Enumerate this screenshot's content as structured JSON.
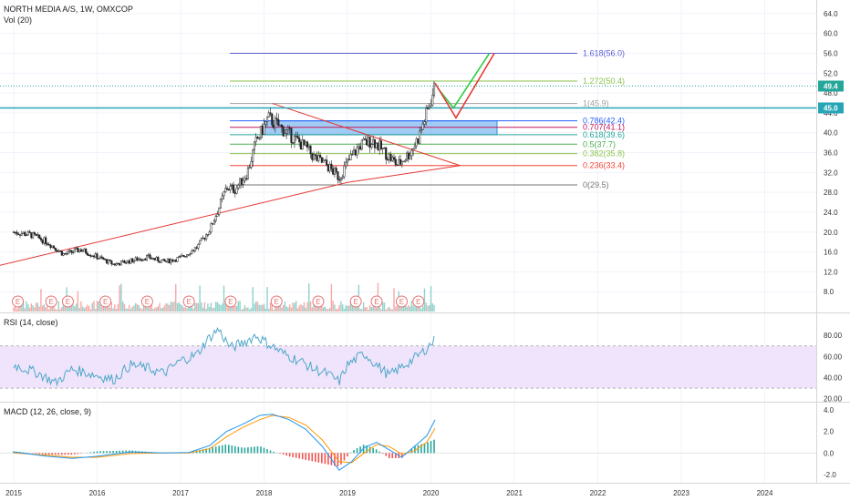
{
  "header": {
    "symbol_line": "NORTH MEDIA A/S, 1W, OMXCOP",
    "volume_label": "Vol (20)"
  },
  "panes": {
    "rsi_label": "RSI (14, close)",
    "macd_label": "MACD (12, 26, close, 9)"
  },
  "colors": {
    "up": "#26a69a",
    "down": "#ef5350",
    "fib_zone": "#2f8ee6",
    "rsi_line": "#4fa7c8",
    "rsi_band": "#efe4fb",
    "macd_line": "#2196f3",
    "signal_line": "#ff9800",
    "trend_line": "#e53935",
    "current_price": "#26a69a",
    "level_45": "#26a5b7",
    "projection_green": "#2ecc40",
    "projection_red": "#e53935"
  },
  "chart_data": {
    "type": "candlestick",
    "x_axis": {
      "ticks": [
        "2015",
        "2016",
        "2017",
        "2018",
        "2019",
        "2020",
        "2021",
        "2022",
        "2023",
        "2024"
      ]
    },
    "price_axis": {
      "ticks": [
        "8.0",
        "12.0",
        "16.0",
        "20.0",
        "24.0",
        "28.0",
        "32.0",
        "36.0",
        "40.0",
        "44.0",
        "48.0",
        "52.0",
        "56.0",
        "60.0",
        "64.0"
      ],
      "range": [
        4,
        66
      ]
    },
    "current_price": "49.4",
    "horizontal_level": "45.0",
    "price_path": [
      [
        2015.0,
        20.0
      ],
      [
        2015.2,
        19.5
      ],
      [
        2015.4,
        18.0
      ],
      [
        2015.6,
        15.5
      ],
      [
        2015.8,
        16.5
      ],
      [
        2016.0,
        15.0
      ],
      [
        2016.2,
        13.5
      ],
      [
        2016.4,
        14.2
      ],
      [
        2016.6,
        15.0
      ],
      [
        2016.8,
        14.0
      ],
      [
        2017.0,
        14.8
      ],
      [
        2017.2,
        17.0
      ],
      [
        2017.35,
        20.5
      ],
      [
        2017.45,
        24.5
      ],
      [
        2017.55,
        29.0
      ],
      [
        2017.65,
        28.5
      ],
      [
        2017.8,
        32.0
      ],
      [
        2017.9,
        38.0
      ],
      [
        2018.05,
        43.0
      ],
      [
        2018.2,
        41.0
      ],
      [
        2018.35,
        39.0
      ],
      [
        2018.5,
        37.0
      ],
      [
        2018.6,
        35.0
      ],
      [
        2018.75,
        33.5
      ],
      [
        2018.9,
        31.0
      ],
      [
        2019.0,
        34.0
      ],
      [
        2019.15,
        37.5
      ],
      [
        2019.3,
        38.5
      ],
      [
        2019.45,
        36.0
      ],
      [
        2019.6,
        33.5
      ],
      [
        2019.75,
        36.0
      ],
      [
        2019.85,
        39.0
      ],
      [
        2019.95,
        44.0
      ],
      [
        2020.05,
        49.4
      ]
    ],
    "fibonacci_levels": [
      {
        "label": "1.618(56.0)",
        "value": 56.0,
        "color": "#5b5bd6"
      },
      {
        "label": "1.272(50.4)",
        "value": 50.4,
        "color": "#8bc34a"
      },
      {
        "label": "1(45.9)",
        "value": 45.9,
        "color": "#9e9e9e"
      },
      {
        "label": "0.786(42.4)",
        "value": 42.4,
        "color": "#2962ff"
      },
      {
        "label": "0.707(41.1)",
        "value": 41.1,
        "color": "#c2185b"
      },
      {
        "label": "0.618(39.6)",
        "value": 39.6,
        "color": "#26a69a"
      },
      {
        "label": "0.5(37.7)",
        "value": 37.7,
        "color": "#4caf50"
      },
      {
        "label": "0.382(35.8)",
        "value": 35.8,
        "color": "#8bc34a"
      },
      {
        "label": "0.236(33.4)",
        "value": 33.4,
        "color": "#f44336"
      },
      {
        "label": "0(29.5)",
        "value": 29.5,
        "color": "#757575"
      }
    ],
    "earnings_markers": {
      "label": "E",
      "x": [
        2015.05,
        2015.45,
        2015.65,
        2016.1,
        2016.6,
        2017.1,
        2017.6,
        2018.15,
        2018.65,
        2019.1,
        2019.35,
        2019.65,
        2019.85
      ]
    },
    "rsi": {
      "ticks": [
        "20.00",
        "40.00",
        "60.00",
        "80.00"
      ],
      "range": [
        18,
        100
      ],
      "band": [
        30,
        70
      ],
      "path": [
        [
          2015.0,
          52
        ],
        [
          2015.3,
          44
        ],
        [
          2015.5,
          35
        ],
        [
          2015.7,
          48
        ],
        [
          2016.0,
          42
        ],
        [
          2016.2,
          38
        ],
        [
          2016.4,
          52
        ],
        [
          2016.6,
          49
        ],
        [
          2016.8,
          44
        ],
        [
          2017.0,
          56
        ],
        [
          2017.2,
          62
        ],
        [
          2017.3,
          74
        ],
        [
          2017.45,
          86
        ],
        [
          2017.6,
          68
        ],
        [
          2017.8,
          75
        ],
        [
          2017.9,
          80
        ],
        [
          2018.05,
          72
        ],
        [
          2018.25,
          62
        ],
        [
          2018.45,
          55
        ],
        [
          2018.6,
          48
        ],
        [
          2018.75,
          44
        ],
        [
          2018.9,
          36
        ],
        [
          2019.0,
          52
        ],
        [
          2019.2,
          63
        ],
        [
          2019.35,
          52
        ],
        [
          2019.5,
          42
        ],
        [
          2019.65,
          50
        ],
        [
          2019.8,
          58
        ],
        [
          2019.9,
          64
        ],
        [
          2020.05,
          76
        ]
      ]
    },
    "macd": {
      "ticks": [
        "-2.0",
        "0.0",
        "2.0",
        "4.0"
      ],
      "range": [
        -2.6,
        4.6
      ],
      "macd_path": [
        [
          2015.0,
          0.1
        ],
        [
          2015.4,
          -0.3
        ],
        [
          2015.7,
          -0.5
        ],
        [
          2016.0,
          -0.3
        ],
        [
          2016.4,
          0.1
        ],
        [
          2016.8,
          0.0
        ],
        [
          2017.1,
          0.05
        ],
        [
          2017.35,
          0.7
        ],
        [
          2017.55,
          2.0
        ],
        [
          2017.75,
          2.7
        ],
        [
          2017.95,
          3.5
        ],
        [
          2018.1,
          3.6
        ],
        [
          2018.3,
          3.1
        ],
        [
          2018.5,
          2.2
        ],
        [
          2018.7,
          0.6
        ],
        [
          2018.9,
          -1.6
        ],
        [
          2019.05,
          -0.8
        ],
        [
          2019.2,
          0.5
        ],
        [
          2019.35,
          1.0
        ],
        [
          2019.5,
          0.3
        ],
        [
          2019.65,
          -0.4
        ],
        [
          2019.8,
          0.6
        ],
        [
          2019.95,
          1.6
        ],
        [
          2020.05,
          3.1
        ]
      ],
      "signal_path": [
        [
          2015.0,
          0.0
        ],
        [
          2015.4,
          -0.2
        ],
        [
          2015.7,
          -0.4
        ],
        [
          2016.0,
          -0.4
        ],
        [
          2016.4,
          -0.05
        ],
        [
          2016.8,
          0.0
        ],
        [
          2017.1,
          0.0
        ],
        [
          2017.35,
          0.4
        ],
        [
          2017.55,
          1.5
        ],
        [
          2017.75,
          2.4
        ],
        [
          2017.95,
          3.1
        ],
        [
          2018.1,
          3.5
        ],
        [
          2018.3,
          3.3
        ],
        [
          2018.5,
          2.6
        ],
        [
          2018.7,
          1.2
        ],
        [
          2018.9,
          -0.8
        ],
        [
          2019.05,
          -0.9
        ],
        [
          2019.2,
          0.0
        ],
        [
          2019.35,
          0.8
        ],
        [
          2019.5,
          0.6
        ],
        [
          2019.65,
          -0.1
        ],
        [
          2019.8,
          0.2
        ],
        [
          2019.95,
          1.0
        ],
        [
          2020.05,
          2.3
        ]
      ]
    }
  }
}
